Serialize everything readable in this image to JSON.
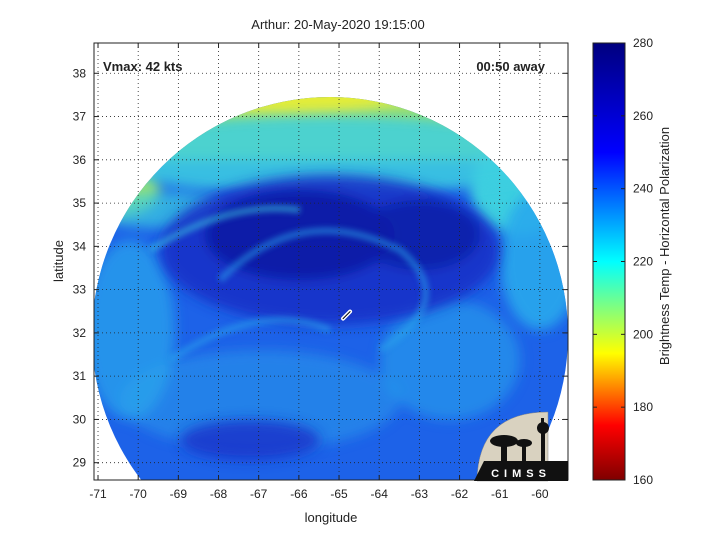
{
  "figure": {
    "title": "Arthur: 20-May-2020 19:15:00",
    "vmax_label": "Vmax: 42 kts",
    "time_away_label": "00:50 away",
    "logo_text": "CIMSS"
  },
  "map": {
    "xlabel": "longitude",
    "ylabel": "latitude",
    "lon_range": [
      -71.1,
      -59.3
    ],
    "lat_range": [
      28.6,
      38.7
    ],
    "lon_ticks": [
      "-71",
      "-70",
      "-69",
      "-68",
      "-67",
      "-66",
      "-65",
      "-64",
      "-63",
      "-62",
      "-61",
      "-60"
    ],
    "lat_ticks": [
      "29",
      "30",
      "31",
      "32",
      "33",
      "34",
      "35",
      "36",
      "37",
      "38"
    ],
    "storm_center": {
      "lon": -64.8,
      "lat": 32.4
    },
    "grid": "dotted"
  },
  "colorbar": {
    "label": "Brightness Temp - Horizontal Polarization",
    "range": [
      160,
      280
    ],
    "ticks": [
      "160",
      "180",
      "200",
      "220",
      "240",
      "260",
      "280"
    ],
    "colors": {
      "c160": "#7f0000",
      "c175": "#ff0000",
      "c195": "#ffff00",
      "c220": "#00ffff",
      "c250": "#0000ff",
      "c280": "#00007f"
    }
  },
  "colors": {
    "outer_yellow": "#e2ec3a",
    "north_green": "#9ee06a",
    "cyan": "#3ccfe0",
    "light_blue": "#2aa8ec",
    "mid_blue": "#1d62e8",
    "deep_blue": "#1530c8",
    "darkest_blue": "#0f1fa8"
  }
}
